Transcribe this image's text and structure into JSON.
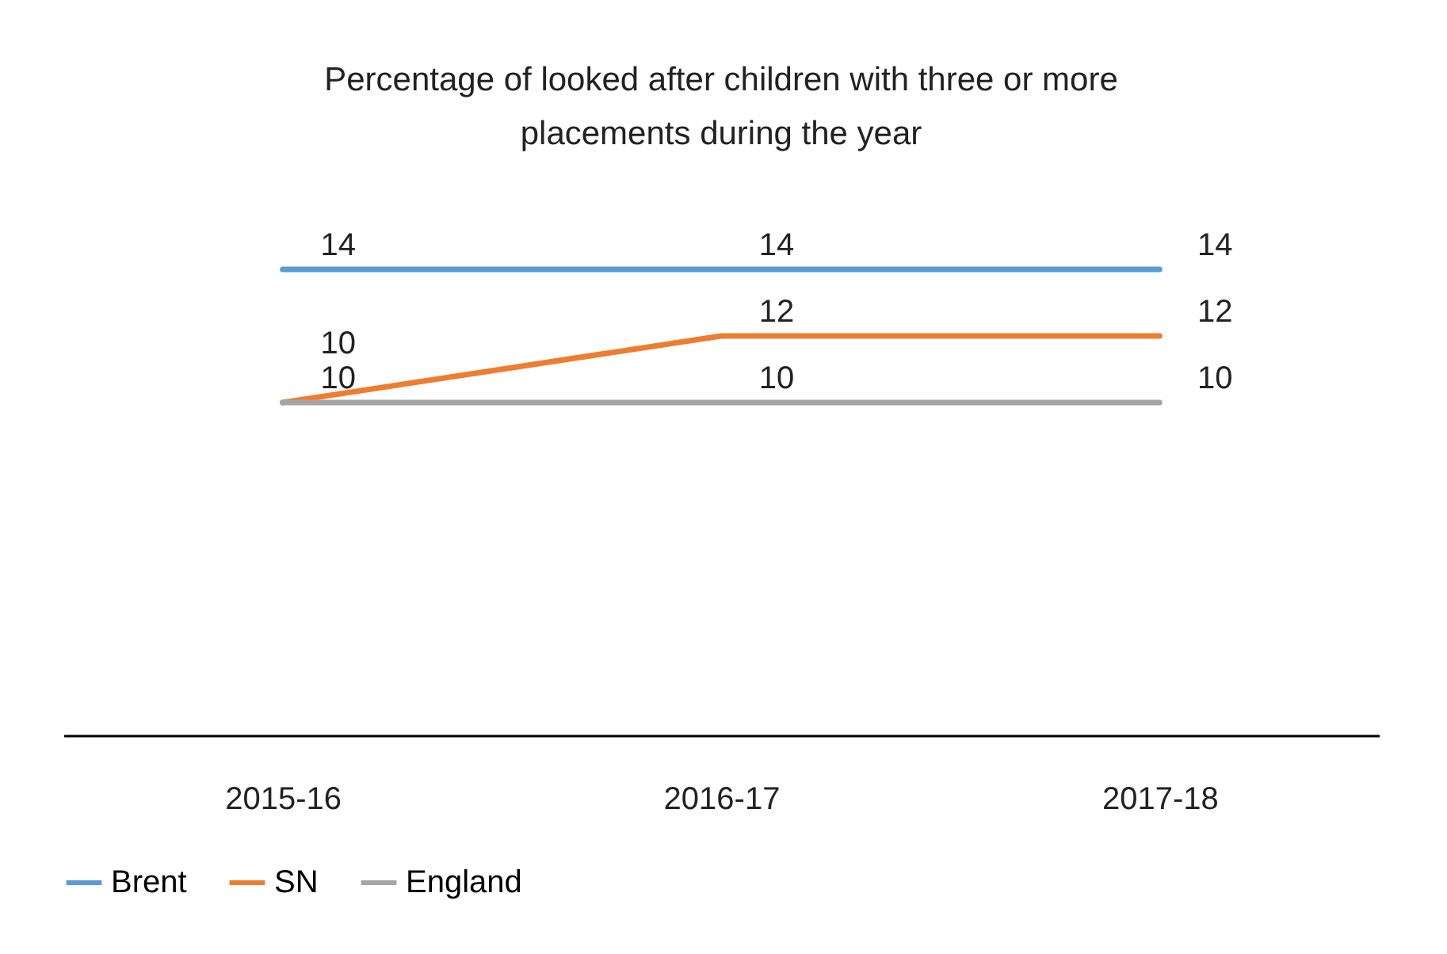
{
  "chart_data": {
    "type": "line",
    "title": "Percentage of looked after children with three or more placements during the year",
    "categories": [
      "2015-16",
      "2016-17",
      "2017-18"
    ],
    "series": [
      {
        "name": "Brent",
        "color": "#5b9bd5",
        "values": [
          14,
          14,
          14
        ]
      },
      {
        "name": "SN",
        "color": "#ed7d31",
        "values": [
          10,
          12,
          12
        ]
      },
      {
        "name": "England",
        "color": "#a5a5a5",
        "values": [
          10,
          10,
          10
        ]
      }
    ],
    "data_labels": true,
    "legend": "bottom",
    "grid": false,
    "marker": "none",
    "line_style": "solid"
  }
}
